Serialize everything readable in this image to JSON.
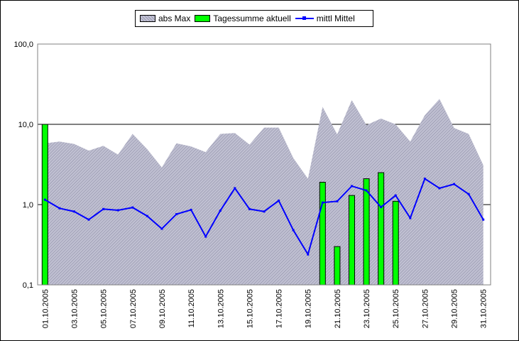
{
  "chart_data": {
    "type": "bar",
    "title": "",
    "xlabel": "",
    "ylabel": "",
    "yscale": "log",
    "ylim": [
      0.1,
      100
    ],
    "y_ticks": [
      {
        "value": 0.1,
        "label": "0,1"
      },
      {
        "value": 1,
        "label": "1,0"
      },
      {
        "value": 10,
        "label": "10,0"
      },
      {
        "value": 100,
        "label": "100,0"
      }
    ],
    "gridlines": [
      1,
      10
    ],
    "legend_position": "top",
    "x": [
      "01.10.2005",
      "02.10.2005",
      "03.10.2005",
      "04.10.2005",
      "05.10.2005",
      "06.10.2005",
      "07.10.2005",
      "08.10.2005",
      "09.10.2005",
      "10.10.2005",
      "11.10.2005",
      "12.10.2005",
      "13.10.2005",
      "14.10.2005",
      "15.10.2005",
      "16.10.2005",
      "17.10.2005",
      "18.10.2005",
      "19.10.2005",
      "20.10.2005",
      "21.10.2005",
      "22.10.2005",
      "23.10.2005",
      "24.10.2005",
      "25.10.2005",
      "26.10.2005",
      "27.10.2005",
      "28.10.2005",
      "29.10.2005",
      "30.10.2005",
      "31.10.2005"
    ],
    "x_tick_labels": [
      "01.10.2005",
      "03.10.2005",
      "05.10.2005",
      "07.10.2005",
      "09.10.2005",
      "11.10.2005",
      "13.10.2005",
      "15.10.2005",
      "17.10.2005",
      "19.10.2005",
      "21.10.2005",
      "23.10.2005",
      "25.10.2005",
      "27.10.2005",
      "29.10.2005",
      "31.10.2005"
    ],
    "series": [
      {
        "name": "abs Max",
        "kind": "area",
        "color": "#b4b4c8",
        "values": [
          5.8,
          6.1,
          5.7,
          4.7,
          5.4,
          4.2,
          7.6,
          4.9,
          2.9,
          5.8,
          5.3,
          4.5,
          7.6,
          7.8,
          5.6,
          9.1,
          9.1,
          3.8,
          2.1,
          16.5,
          7.5,
          20.0,
          9.8,
          11.8,
          10.0,
          6.1,
          13.0,
          20.7,
          9.0,
          7.6,
          3.1
        ]
      },
      {
        "name": "Tagessumme aktuell",
        "kind": "bar",
        "color": "#00ff00",
        "values": [
          10.0,
          null,
          null,
          null,
          null,
          null,
          null,
          null,
          null,
          null,
          null,
          null,
          null,
          null,
          null,
          null,
          null,
          null,
          null,
          1.9,
          0.3,
          1.3,
          2.1,
          2.5,
          1.1,
          null,
          null,
          null,
          null,
          null,
          null
        ]
      },
      {
        "name": "mittl Mittel",
        "kind": "line",
        "color": "#0000ff",
        "values": [
          1.15,
          0.9,
          0.82,
          0.65,
          0.88,
          0.85,
          0.92,
          0.72,
          0.5,
          0.76,
          0.86,
          0.4,
          0.84,
          1.6,
          0.88,
          0.82,
          1.12,
          0.48,
          0.24,
          1.06,
          1.1,
          1.7,
          1.5,
          0.93,
          1.3,
          0.68,
          2.1,
          1.6,
          1.8,
          1.35,
          0.65
        ]
      }
    ]
  },
  "colors": {
    "plot_background": "#ffffff",
    "area_fill": "#b4b4c8",
    "bar_fill": "#00ff00",
    "line_color": "#0000ff",
    "gridline": "#000000"
  }
}
